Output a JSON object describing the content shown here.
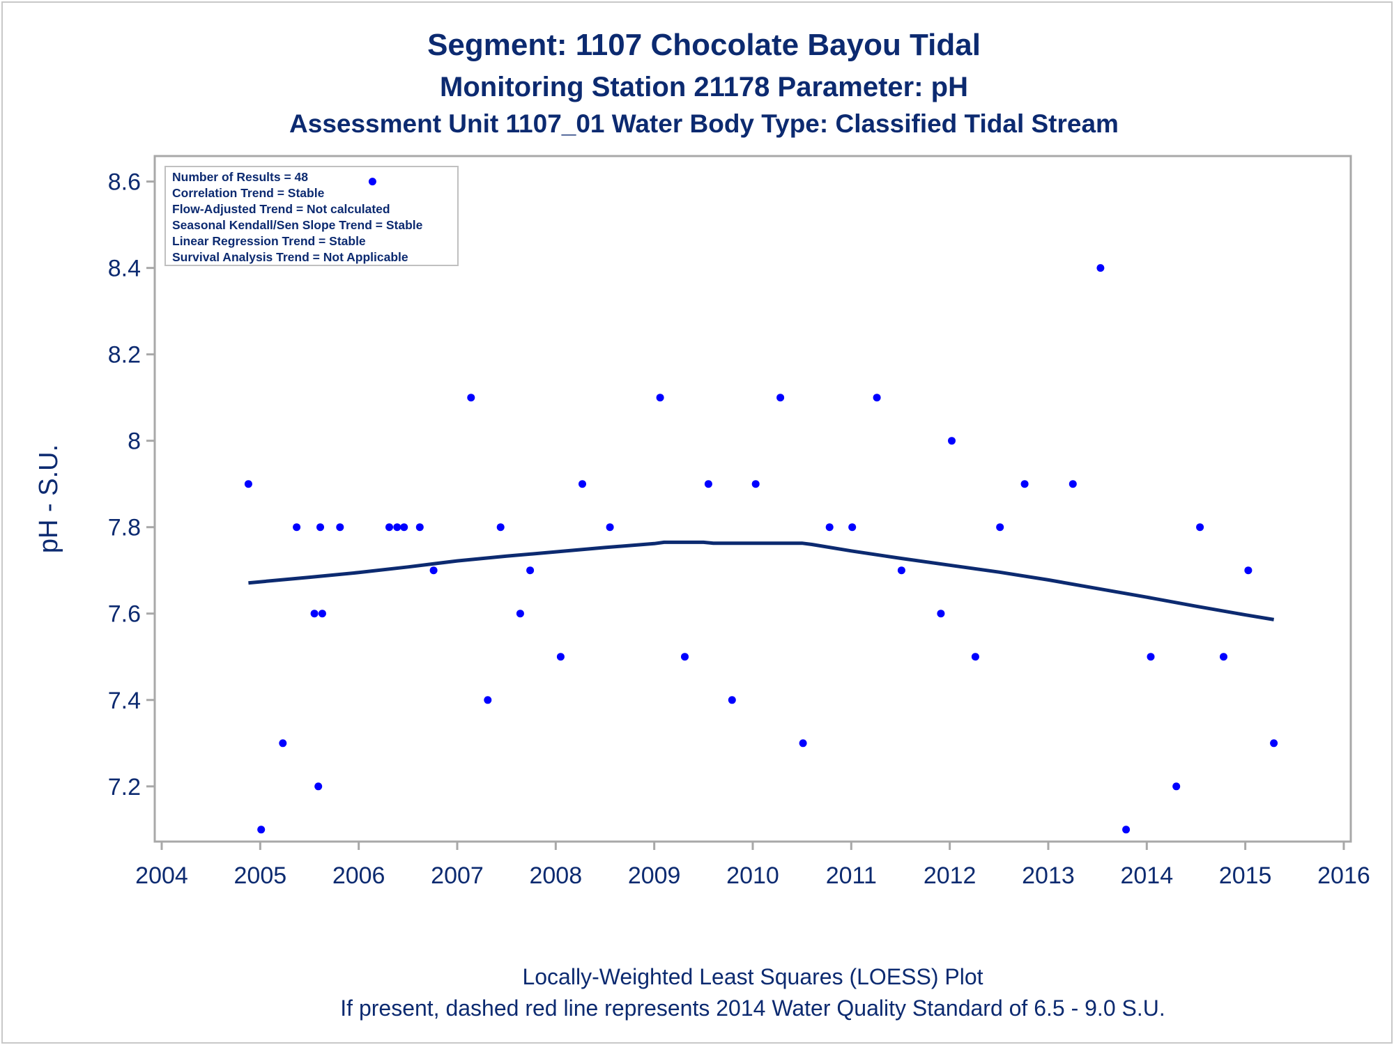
{
  "chart_data": {
    "type": "scatter",
    "title": "Segment: 1107  Chocolate Bayou Tidal",
    "subtitle": "Monitoring Station 21178 Parameter: pH",
    "subtitle2": "Assessment Unit 1107_01   Water Body Type: Classified Tidal Stream",
    "ylabel": "pH - S.U.",
    "xlabel": "",
    "footnote1": "Locally-Weighted Least Squares (LOESS) Plot",
    "footnote2": "If present, dashed red line represents 2014 Water Quality Standard of 6.5 - 9.0 S.U.",
    "xlim": [
      2004,
      2016
    ],
    "ylim": [
      7.09,
      8.63
    ],
    "x_ticks": [
      "2004",
      "2005",
      "2006",
      "2007",
      "2008",
      "2009",
      "2010",
      "2011",
      "2012",
      "2013",
      "2014",
      "2015",
      "2016"
    ],
    "y_ticks": [
      "7.2",
      "7.4",
      "7.6",
      "7.8",
      "8",
      "8.2",
      "8.4",
      "8.6"
    ],
    "legend_placement": "top-left",
    "grid": false,
    "colors": {
      "points": "#0000ff",
      "loess": "#0c2a70",
      "text": "#0c2a70",
      "frame": "#a8a8a8"
    },
    "stats_box": [
      "Number of Results = 48",
      "Correlation Trend = Stable",
      "Flow-Adjusted Trend = Not calculated",
      "Seasonal Kendall/Sen Slope Trend = Stable",
      "Linear Regression Trend = Stable",
      "Survival Analysis Trend = Not Applicable"
    ],
    "series": [
      {
        "x": [
          2004.88,
          2005.01,
          2005.23,
          2005.37,
          2005.55,
          2005.59,
          2005.61,
          2005.63,
          2005.81,
          2006.31,
          2006.39,
          2006.46,
          2006.62,
          2006.76,
          2007.14,
          2007.31,
          2007.44,
          2007.64,
          2007.74,
          2008.05,
          2008.27,
          2008.55,
          2009.06,
          2009.31,
          2009.55,
          2009.79,
          2010.03,
          2010.28,
          2010.51,
          2010.78,
          2011.01,
          2011.26,
          2011.51,
          2011.91,
          2012.02,
          2012.26,
          2012.51,
          2012.76,
          2013.25,
          2013.53,
          2013.79,
          2014.04,
          2014.3,
          2014.54,
          2014.78,
          2015.03,
          2015.29,
          2006.14
        ],
        "y": [
          7.9,
          7.1,
          7.3,
          7.8,
          7.6,
          7.2,
          7.8,
          7.6,
          7.8,
          7.8,
          7.8,
          7.8,
          7.8,
          7.7,
          8.1,
          7.4,
          7.8,
          7.6,
          7.7,
          7.5,
          7.9,
          7.8,
          8.1,
          7.5,
          7.9,
          7.4,
          7.9,
          8.1,
          7.3,
          7.8,
          7.8,
          8.1,
          7.7,
          7.6,
          8.0,
          7.5,
          7.8,
          7.9,
          7.9,
          8.4,
          7.1,
          7.5,
          7.2,
          7.8,
          7.5,
          7.7,
          7.3,
          8.6
        ]
      },
      {
        "x": [
          2004.88,
          2005.5,
          2006.0,
          2006.5,
          2007.0,
          2007.5,
          2008.0,
          2008.5,
          2009.0,
          2009.1,
          2009.5,
          2009.6,
          2010.0,
          2010.5,
          2010.6,
          2011.0,
          2011.5,
          2012.0,
          2012.5,
          2013.0,
          2013.5,
          2014.0,
          2014.5,
          2015.0,
          2015.29
        ],
        "y": [
          7.671,
          7.684,
          7.695,
          7.708,
          7.722,
          7.733,
          7.743,
          7.753,
          7.762,
          7.765,
          7.765,
          7.763,
          7.763,
          7.763,
          7.76,
          7.745,
          7.728,
          7.712,
          7.696,
          7.678,
          7.658,
          7.638,
          7.617,
          7.597,
          7.586
        ]
      }
    ]
  }
}
